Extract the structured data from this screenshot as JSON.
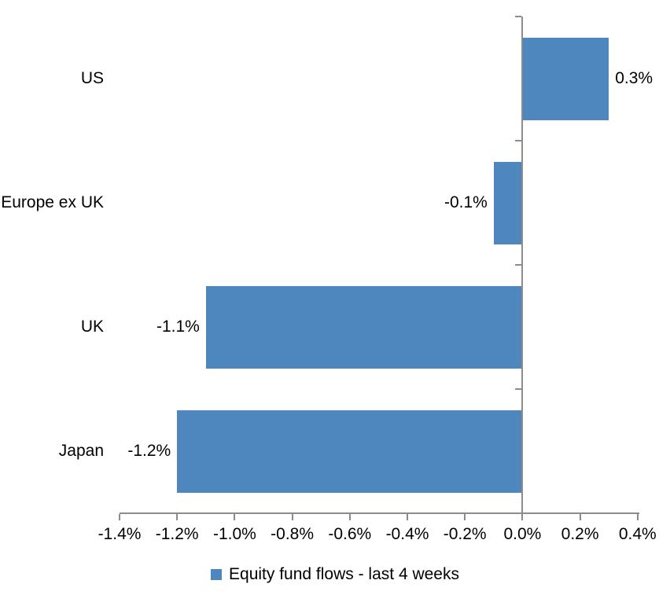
{
  "chart_data": {
    "type": "bar",
    "orientation": "horizontal",
    "title": "",
    "xlabel": "",
    "ylabel": "",
    "categories": [
      "US",
      "Europe ex UK",
      "UK",
      "Japan"
    ],
    "values": [
      0.3,
      -0.1,
      -1.1,
      -1.2
    ],
    "data_labels": [
      "0.3%",
      "-0.1%",
      "-1.1%",
      "-1.2%"
    ],
    "xlim": [
      -1.4,
      0.4
    ],
    "x_tick_step": 0.2,
    "x_tick_labels": [
      "-1.4%",
      "-1.2%",
      "-1.0%",
      "-0.8%",
      "-0.6%",
      "-0.4%",
      "-0.2%",
      "0.0%",
      "0.2%",
      "0.4%"
    ],
    "grid": false,
    "legend_position": "bottom",
    "legend": {
      "label": "Equity fund flows - last 4 weeks"
    },
    "colors": {
      "bar": "#4E86BE",
      "axis": "#8C8C8C",
      "text": "#000000",
      "background": "#FFFFFF"
    }
  }
}
